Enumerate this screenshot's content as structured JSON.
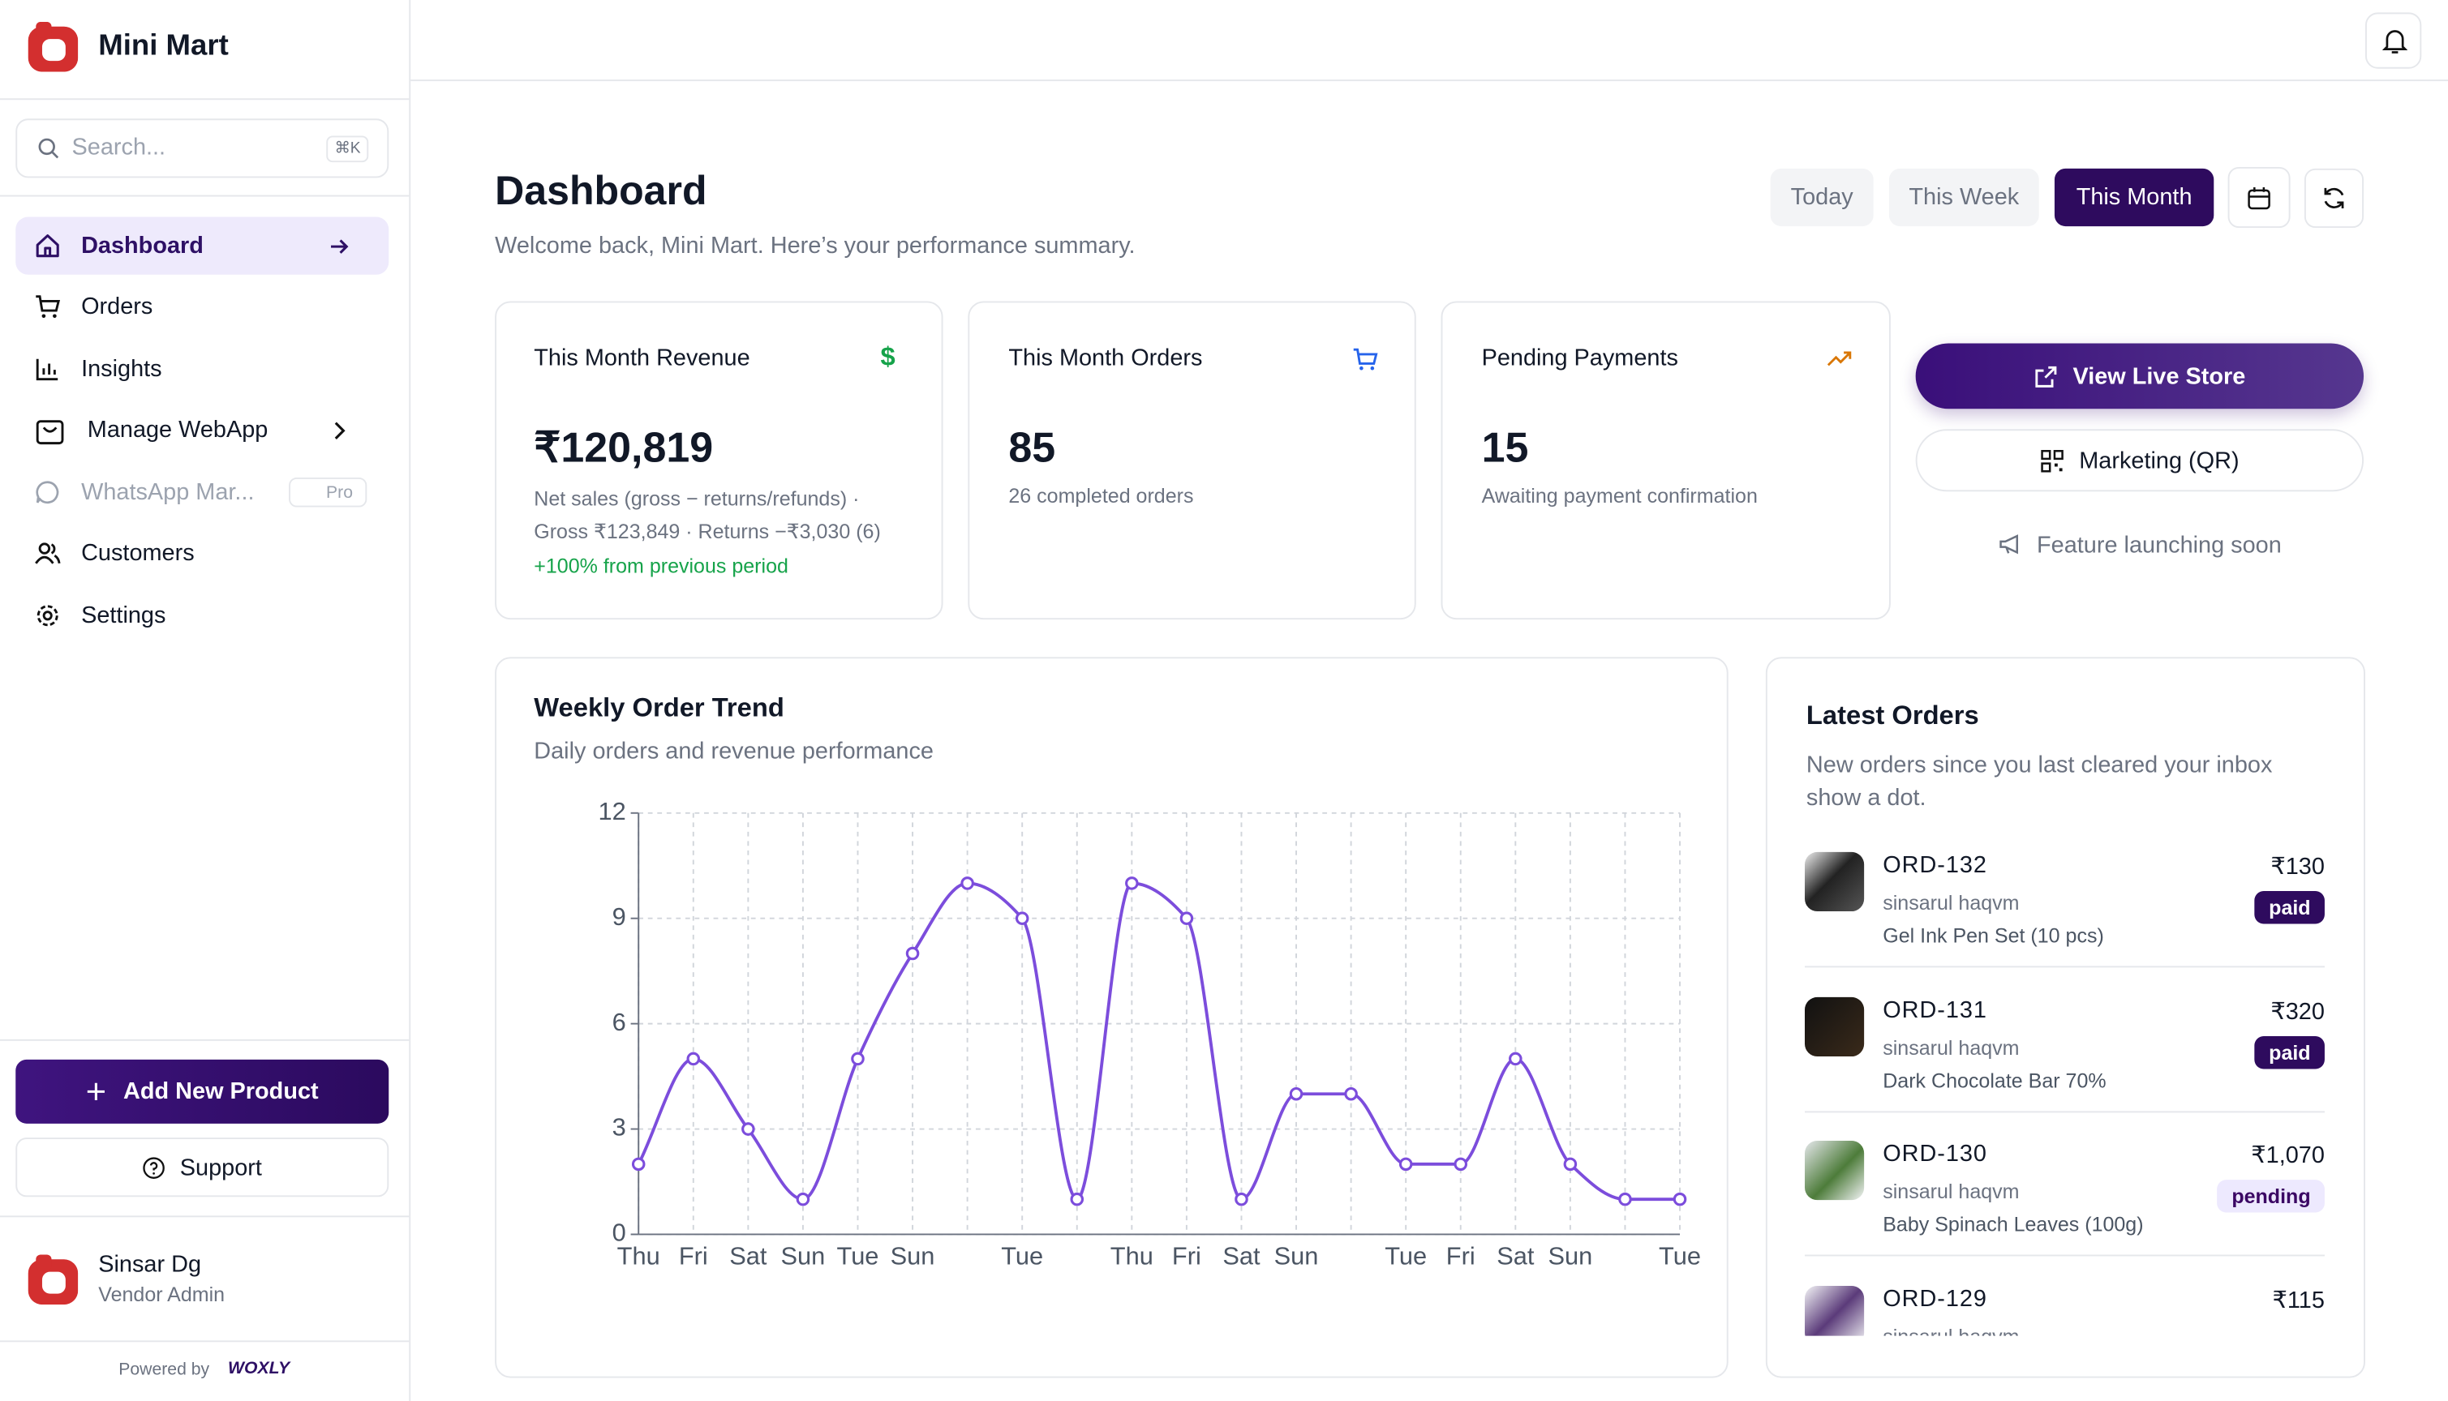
{
  "sidebar": {
    "brand": "Mini Mart",
    "search": "Search...",
    "shortcut": "⌘K",
    "nav": [
      "Dashboard",
      "Orders",
      "Insights",
      "Manage WebApp",
      "WhatsApp Mar...",
      "Customers",
      "Settings"
    ],
    "pro_badge": "Pro",
    "add_product": "Add New Product",
    "support": "Support",
    "user": {
      "name": "Sinsar Dg",
      "role": "Vendor Admin"
    },
    "powered_by": "Powered by",
    "powered_logo": "WOXLY"
  },
  "header": {
    "title": "Dashboard",
    "subtitle": "Welcome back, Mini Mart. Here’s your performance summary.",
    "ranges": [
      "Today",
      "This Week",
      "This Month"
    ]
  },
  "stats": [
    {
      "title": "This Month Revenue",
      "value": "₹120,819",
      "lines": [
        "Net sales (gross − returns/refunds) ·",
        "Gross ₹123,849 · Returns −₹3,030 (6)"
      ],
      "change": "+100% from previous period"
    },
    {
      "title": "This Month Orders",
      "value": "85",
      "lines": [
        "26 completed orders"
      ]
    },
    {
      "title": "Pending Payments",
      "value": "15",
      "lines": [
        "Awaiting payment confirmation"
      ]
    }
  ],
  "actions": {
    "view_store": "View Live Store",
    "marketing": "Marketing (QR)",
    "soon": "Feature launching soon"
  },
  "trend_chart": {
    "type": "line",
    "title": "Weekly Order Trend",
    "subtitle": "Daily orders and revenue performance",
    "color": "#7c4ddc",
    "categories": [
      "Thu",
      "Fri",
      "Sat",
      "Sun",
      "Tue",
      "Sun",
      null,
      "Tue",
      null,
      "Thu",
      "Fri",
      "Sat",
      "Sun",
      null,
      "Tue",
      "Fri",
      "Sat",
      "Sun",
      null,
      "Tue"
    ],
    "values": [
      2,
      5,
      3,
      1,
      5,
      8,
      10,
      9,
      1,
      10,
      9,
      1,
      4,
      4,
      2,
      2,
      5,
      2,
      1,
      1
    ],
    "ylim": [
      0,
      12
    ],
    "yticks": [
      0,
      3,
      6,
      9,
      12
    ],
    "grid": true
  },
  "latest_orders": {
    "title": "Latest Orders",
    "subtitle": "New orders since you last cleared your inbox show a dot.",
    "orders": [
      {
        "id": "ORD-132",
        "customer": "sinsarul haqvm",
        "product": "Gel Ink Pen Set (10 pcs)",
        "amount": "₹130",
        "status": "paid"
      },
      {
        "id": "ORD-131",
        "customer": "sinsarul haqvm",
        "product": "Dark Chocolate Bar 70%",
        "amount": "₹320",
        "status": "paid"
      },
      {
        "id": "ORD-130",
        "customer": "sinsarul haqvm",
        "product": "Baby Spinach Leaves (100g)",
        "amount": "₹1,070",
        "status": "pending"
      },
      {
        "id": "ORD-129",
        "customer": "sinsarul haqvm",
        "amount": "₹115"
      }
    ]
  }
}
